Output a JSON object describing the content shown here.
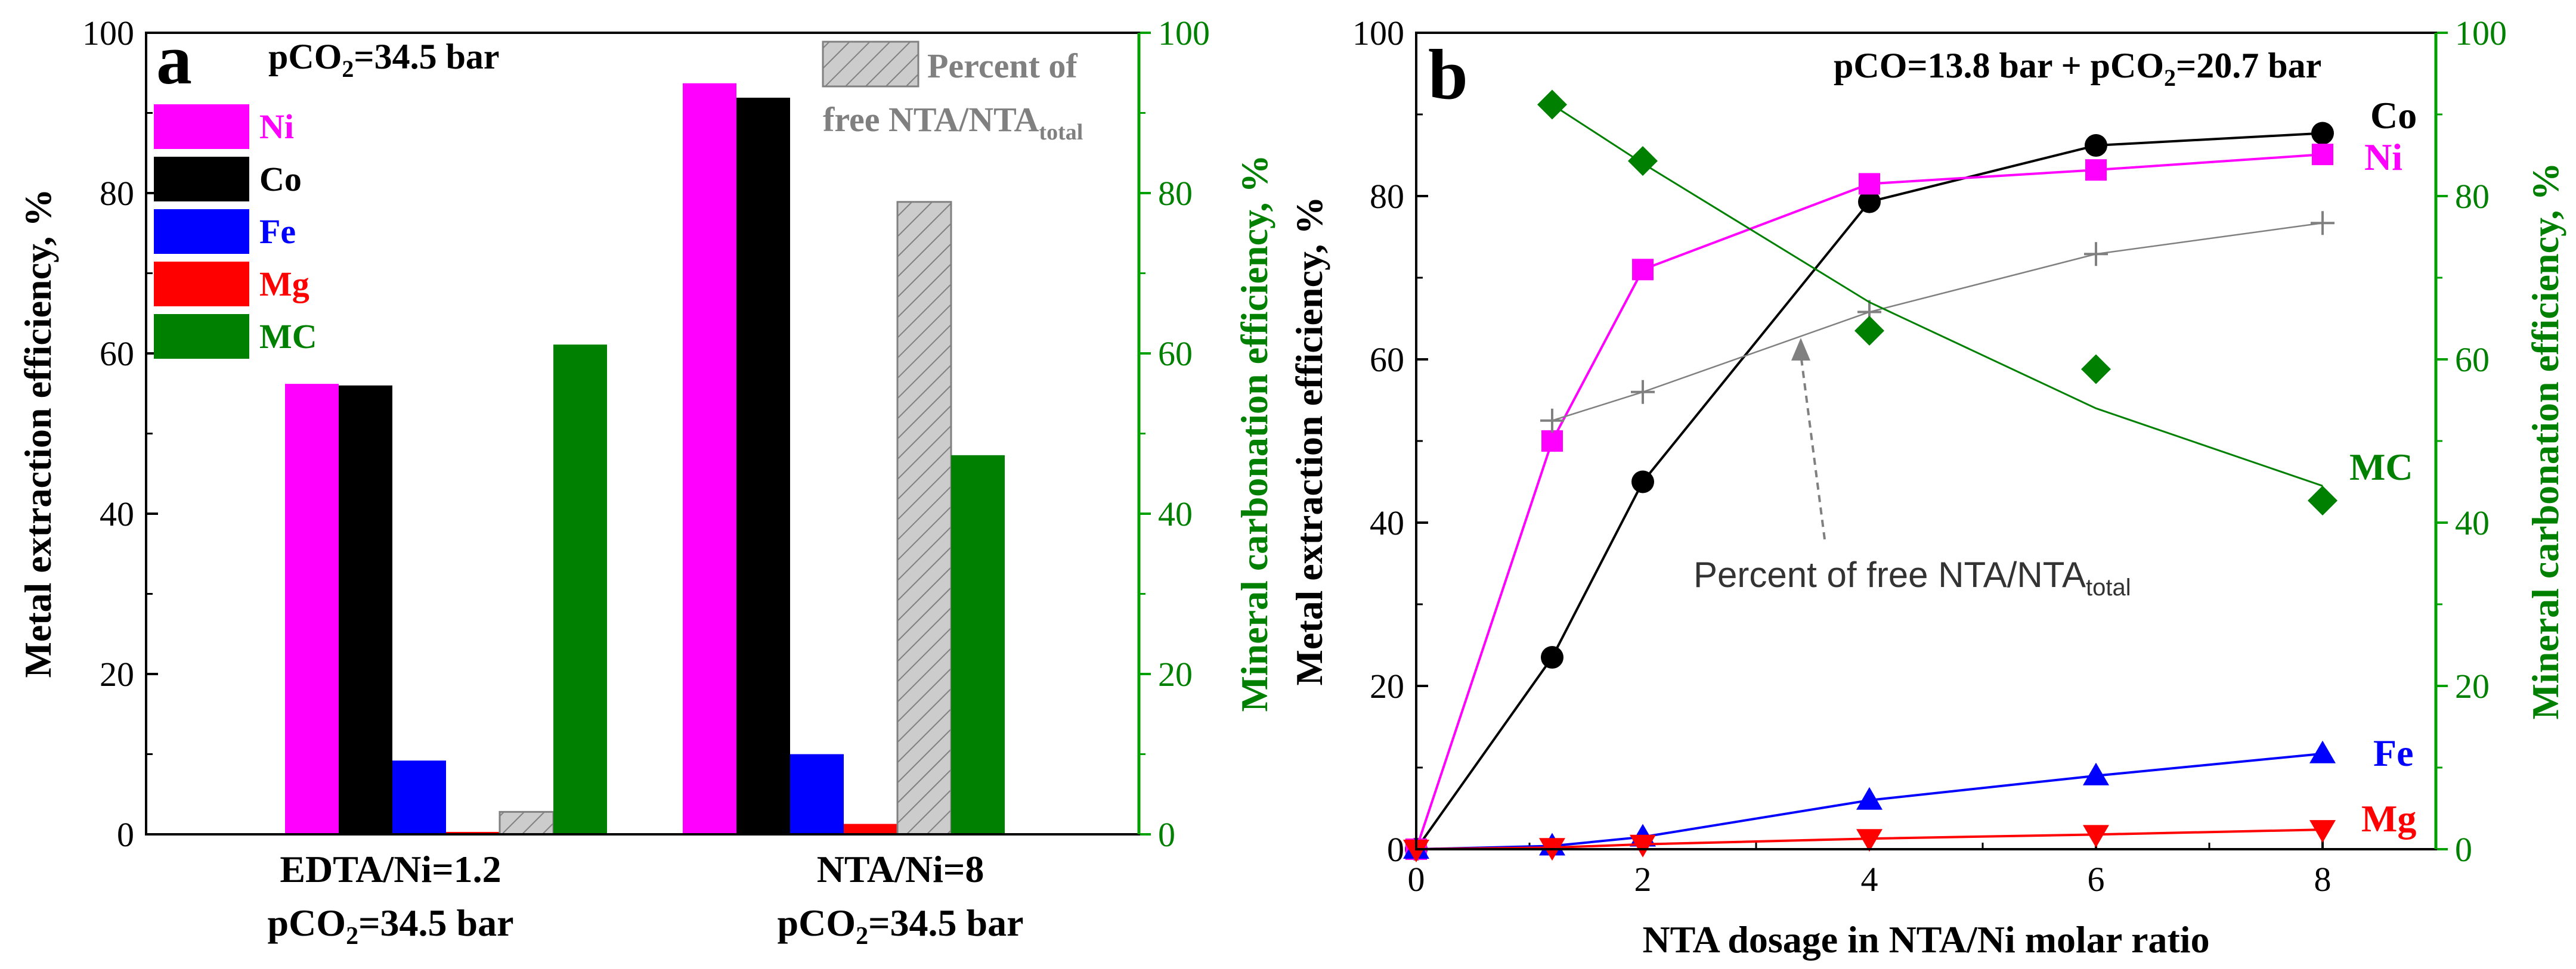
{
  "colors": {
    "ni": "#ff00ff",
    "co": "#000000",
    "fe": "#0000ff",
    "mg": "#ff0000",
    "mc": "#008000",
    "free_fill": "#cccccc",
    "free_text": "#808080",
    "right_axis": "#00a000"
  },
  "chart_data": [
    {
      "type": "bar",
      "panel_label": "a",
      "title": "pCO2=34.5 bar",
      "title_parts": [
        "pCO",
        "2",
        "=34.5 bar"
      ],
      "ylabel": "Metal extraction efficiency, %",
      "ylabel_right": "Mineral carbonation efficiency, %",
      "ylim": [
        0,
        100
      ],
      "ylim_right": [
        0,
        100
      ],
      "yticks": [
        "0",
        "20",
        "40",
        "60",
        "80",
        "100"
      ],
      "yticks_right": [
        "0",
        "20",
        "40",
        "60",
        "80",
        "100"
      ],
      "categories": [
        {
          "line1": "EDTA/Ni=1.2",
          "line2_parts": [
            "pCO",
            "2",
            "=34.5 bar"
          ]
        },
        {
          "line1": "NTA/Ni=8",
          "line2_parts": [
            "pCO",
            "2",
            "=34.5 bar"
          ]
        }
      ],
      "series": [
        {
          "name": "Ni",
          "color_key": "ni",
          "axis": "left",
          "values": [
            56.2,
            93.7
          ]
        },
        {
          "name": "Co",
          "color_key": "co",
          "axis": "left",
          "values": [
            56.0,
            91.9
          ]
        },
        {
          "name": "Fe",
          "color_key": "fe",
          "axis": "left",
          "values": [
            9.2,
            10.0
          ]
        },
        {
          "name": "Mg",
          "color_key": "mg",
          "axis": "left",
          "values": [
            0.3,
            1.3
          ]
        },
        {
          "name": "Percent of free NTA/NTA_total",
          "color_key": "free_fill",
          "axis": "right",
          "hatched": true,
          "values": [
            2.8,
            78.9
          ]
        },
        {
          "name": "MC",
          "color_key": "mc",
          "axis": "right",
          "values": [
            61.1,
            47.3
          ]
        }
      ],
      "legend": {
        "position": "top-left",
        "entries": [
          "Ni",
          "Co",
          "Fe",
          "Mg",
          "MC"
        ],
        "hatch_entry": {
          "line1": "Percent of",
          "line2": "free NTA/NTA",
          "sub": "total",
          "position": "top-right"
        }
      }
    },
    {
      "type": "line",
      "panel_label": "b",
      "title": "pCO=13.8 bar + pCO2=20.7 bar",
      "title_parts": [
        "pCO=13.8 bar + pCO",
        "2",
        "=20.7 bar"
      ],
      "xlabel": "NTA dosage in NTA/Ni molar ratio",
      "ylabel": "Metal extraction efficiency, %",
      "ylabel_right": "Mineral carbonation efficiency, %",
      "xlim": [
        0,
        9
      ],
      "ylim": [
        0,
        100
      ],
      "ylim_right": [
        0,
        100
      ],
      "xticks": [
        "0",
        "2",
        "4",
        "6",
        "8"
      ],
      "yticks": [
        "0",
        "20",
        "40",
        "60",
        "80",
        "100"
      ],
      "yticks_right": [
        "0",
        "20",
        "40",
        "60",
        "80",
        "100"
      ],
      "series": [
        {
          "name": "Co",
          "color_key": "co",
          "marker": "circle",
          "axis": "left",
          "x": [
            0,
            1.2,
            2,
            4,
            6,
            8
          ],
          "values": [
            0,
            23.5,
            45.0,
            79.3,
            86.2,
            87.7
          ]
        },
        {
          "name": "Ni",
          "color_key": "ni",
          "marker": "square",
          "axis": "left",
          "x": [
            0,
            1.2,
            2,
            4,
            6,
            8
          ],
          "values": [
            0,
            50.0,
            71.0,
            81.5,
            83.2,
            85.1
          ]
        },
        {
          "name": "Fe",
          "color_key": "fe",
          "marker": "triangle-up",
          "axis": "left",
          "x": [
            0,
            1.2,
            2,
            4,
            6,
            8
          ],
          "values": [
            0,
            0.4,
            1.5,
            6.0,
            9.0,
            11.7
          ]
        },
        {
          "name": "Mg",
          "color_key": "mg",
          "marker": "triangle-down",
          "axis": "left",
          "x": [
            0,
            1.2,
            2,
            4,
            6,
            8
          ],
          "values": [
            0,
            0.2,
            0.6,
            1.3,
            1.8,
            2.4
          ]
        },
        {
          "name": "Percent of free NTA/NTA_total",
          "color_key": "free_text",
          "marker": "plus",
          "axis": "left",
          "x": [
            1.2,
            2,
            4,
            6,
            8
          ],
          "values": [
            52.5,
            56.0,
            65.8,
            72.9,
            76.7
          ]
        },
        {
          "name": "MC",
          "color_key": "mc",
          "marker": "diamond",
          "axis": "right",
          "fit_line": true,
          "x": [
            1.2,
            2,
            4,
            6,
            8
          ],
          "values": [
            91.2,
            84.3,
            63.5,
            58.8,
            42.7
          ],
          "fit": [
            91.2,
            84.0,
            67.0,
            54.0,
            44.5
          ]
        }
      ],
      "series_labels": [
        "Co",
        "Ni",
        "Fe",
        "Mg",
        "MC"
      ],
      "annotation": {
        "prefix": "Percent of free NTA/NTA",
        "sub": "total"
      }
    }
  ]
}
